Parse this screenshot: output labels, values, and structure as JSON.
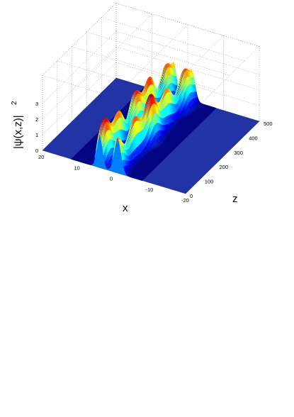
{
  "chart_data": {
    "type": "surface",
    "title": "",
    "xlabel": "x",
    "ylabel": "z",
    "zlabel": "|ψ(x,z)|²",
    "zlabel_main": "|ψ(x,z)|",
    "zlabel_exp": "2",
    "xlim": [
      -20,
      20
    ],
    "ylim": [
      0,
      500
    ],
    "zlim": [
      0,
      3
    ],
    "x_ticks": [
      20,
      10,
      0,
      -10,
      -20
    ],
    "y_ticks": [
      0,
      100,
      200,
      300,
      400,
      500
    ],
    "z_ticks": [
      0,
      1,
      2,
      3
    ],
    "colormap": "jet",
    "grid": true,
    "series": [
      {
        "beam_center_x": 4,
        "amplitude_pattern": "oscillating peaks between ~1.5 and ~3 along z"
      },
      {
        "beam_center_x": -1,
        "amplitude_pattern": "oscillating peaks between ~1.5 and ~3 along z"
      }
    ],
    "background_level": 0
  }
}
